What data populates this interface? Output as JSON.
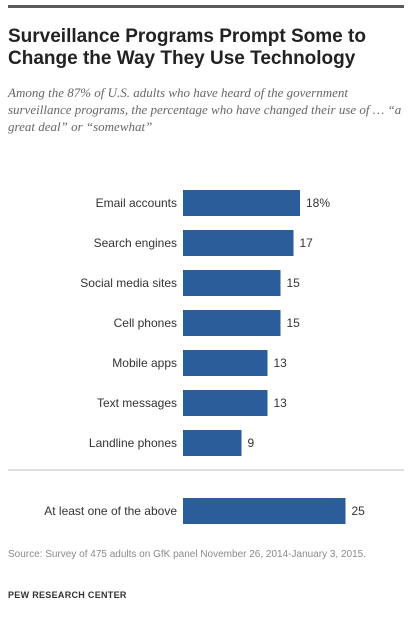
{
  "header": {
    "title": "Surveillance Programs Prompt Some to Change the Way They Use Technology",
    "subtitle": "Among the 87% of U.S. adults who have heard of the government surveillance programs, the percentage who have changed their use of … “a great deal” or “somewhat”"
  },
  "chart_data": {
    "type": "bar",
    "orientation": "horizontal",
    "title": "Surveillance Programs Prompt Some to Change the Way They Use Technology",
    "categories": [
      "Email accounts",
      "Search engines",
      "Social media sites",
      "Cell phones",
      "Mobile apps",
      "Text messages",
      "Landline phones",
      "At least one of the above"
    ],
    "values": [
      18,
      17,
      15,
      15,
      13,
      13,
      9,
      25
    ],
    "value_labels": [
      "18%",
      "17",
      "15",
      "15",
      "13",
      "13",
      "9",
      "25"
    ],
    "xlabel": "",
    "ylabel": "",
    "xlim": [
      0,
      25
    ],
    "grid": false,
    "legend": "none",
    "bar_color": "#2b5d9b"
  },
  "footer": {
    "source": "Source: Survey of 475 adults on GfK panel November 26, 2014-January 3, 2015.",
    "org": "PEW RESEARCH CENTER"
  }
}
